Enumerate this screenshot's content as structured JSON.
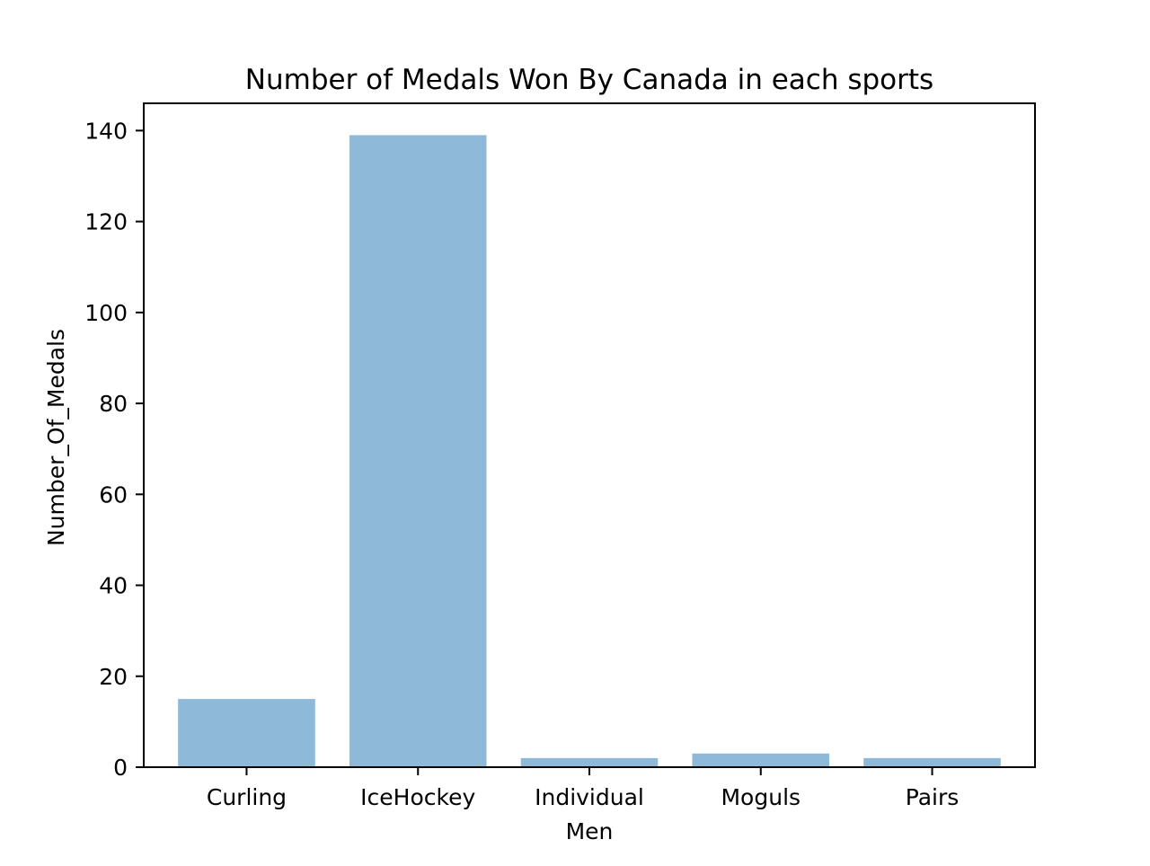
{
  "chart_data": {
    "type": "bar",
    "title": "Number of Medals Won By Canada in each sports",
    "xlabel": "Men",
    "ylabel": "Number_Of_Medals",
    "categories": [
      "Curling",
      "IceHockey",
      "Individual",
      "Moguls",
      "Pairs"
    ],
    "values": [
      15,
      139,
      2,
      3,
      2
    ],
    "ylim": [
      0,
      146
    ],
    "yticks": [
      0,
      20,
      40,
      60,
      80,
      100,
      120,
      140
    ],
    "bar_color": "#8fb9d9",
    "grid": false,
    "legend": "none"
  }
}
